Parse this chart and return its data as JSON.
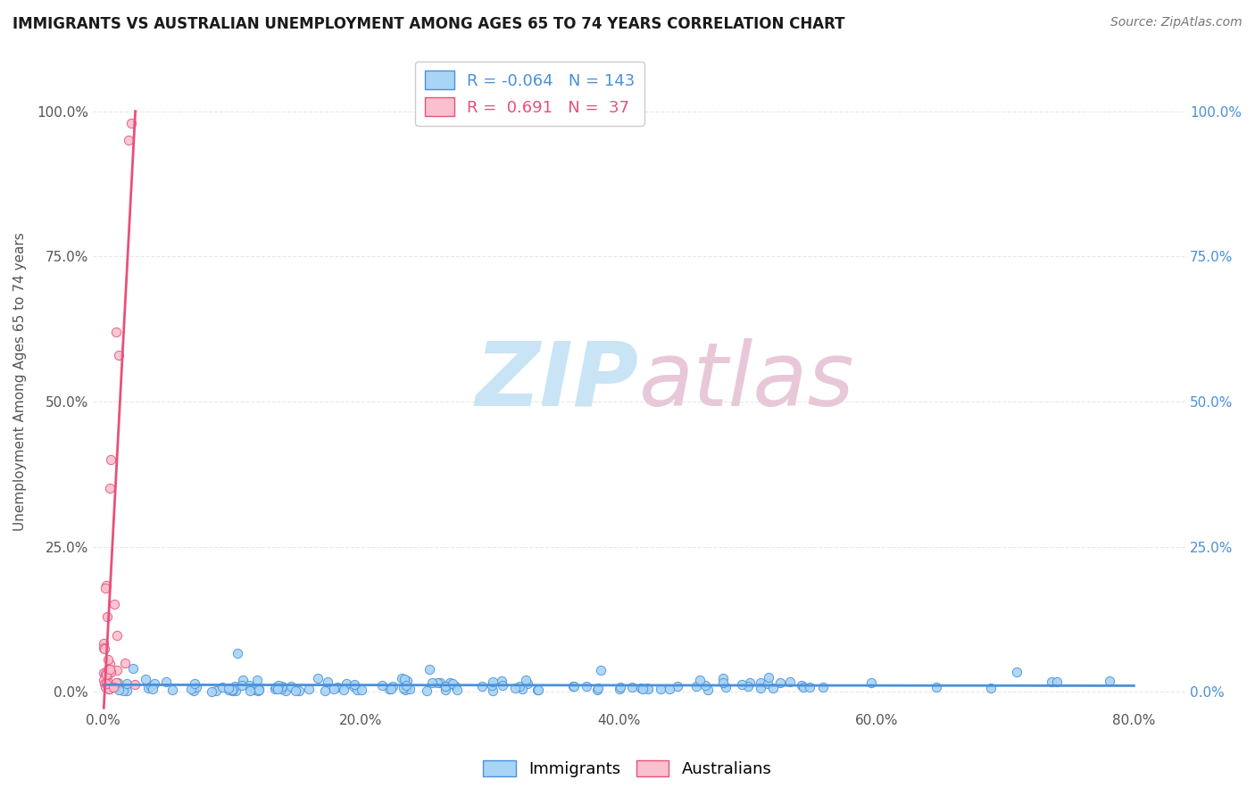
{
  "title": "IMMIGRANTS VS AUSTRALIAN UNEMPLOYMENT AMONG AGES 65 TO 74 YEARS CORRELATION CHART",
  "source": "Source: ZipAtlas.com",
  "xlabel_ticks": [
    "0.0%",
    "20.0%",
    "40.0%",
    "60.0%",
    "80.0%"
  ],
  "xlabel_values": [
    0.0,
    0.2,
    0.4,
    0.6,
    0.8
  ],
  "ylabel_ticks": [
    "0.0%",
    "25.0%",
    "50.0%",
    "75.0%",
    "100.0%"
  ],
  "ylabel_values": [
    0.0,
    0.25,
    0.5,
    0.75,
    1.0
  ],
  "ylabel_label": "Unemployment Among Ages 65 to 74 years",
  "blue_R": -0.064,
  "blue_N": 143,
  "pink_R": 0.691,
  "pink_N": 37,
  "blue_color": "#A8D4F5",
  "pink_color": "#F9C0CE",
  "blue_line_color": "#4A90D9",
  "pink_line_color": "#E8507A",
  "watermark_color": "#C8E4F5",
  "background_color": "#FFFFFF",
  "grid_color": "#E8E8E8",
  "legend_label_immigrants": "Immigrants",
  "legend_label_australians": "Australians",
  "xlim": [
    -0.008,
    0.84
  ],
  "ylim": [
    -0.03,
    1.1
  ]
}
